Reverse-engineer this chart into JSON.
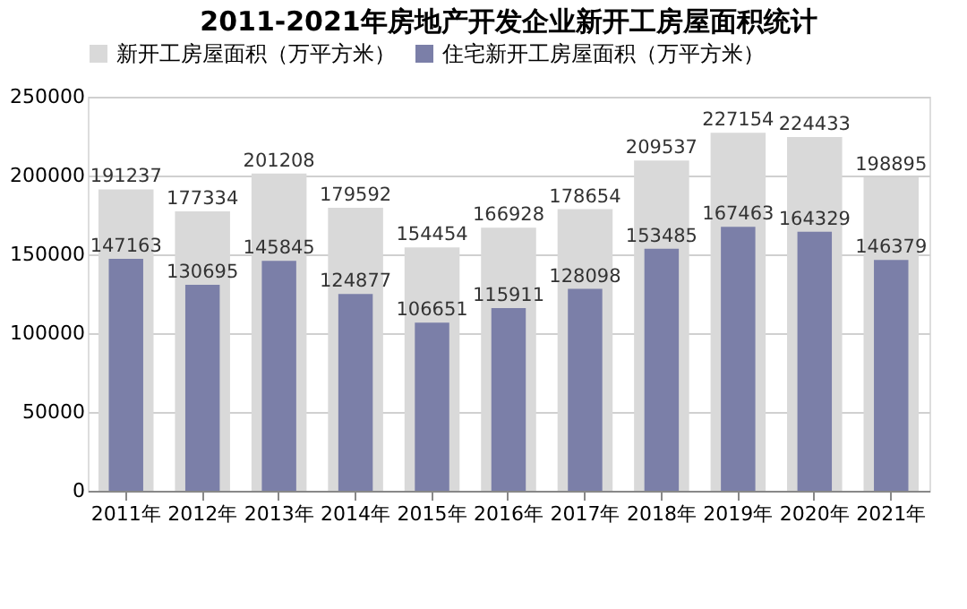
{
  "chart_data": {
    "type": "bar",
    "title": "2011-2021年房地产开发企业新开工房屋面积统计",
    "categories": [
      "2011年",
      "2012年",
      "2013年",
      "2014年",
      "2015年",
      "2016年",
      "2017年",
      "2018年",
      "2019年",
      "2020年",
      "2021年"
    ],
    "series": [
      {
        "name": "新开工房屋面积（万平方米）",
        "color": "#d9d9d9",
        "values": [
          191237,
          177334,
          201208,
          179592,
          154454,
          166928,
          178654,
          209537,
          227154,
          224433,
          198895
        ]
      },
      {
        "name": "住宅新开工房屋面积（万平方米）",
        "color": "#7b7fa8",
        "values": [
          147163,
          130695,
          145845,
          124877,
          106651,
          115911,
          128098,
          153485,
          167463,
          164329,
          146379
        ]
      }
    ],
    "ylim": [
      0,
      250000
    ],
    "yticks": [
      0,
      50000,
      100000,
      150000,
      200000,
      250000
    ],
    "grid": "y",
    "legend": "top",
    "data_labels": true
  }
}
